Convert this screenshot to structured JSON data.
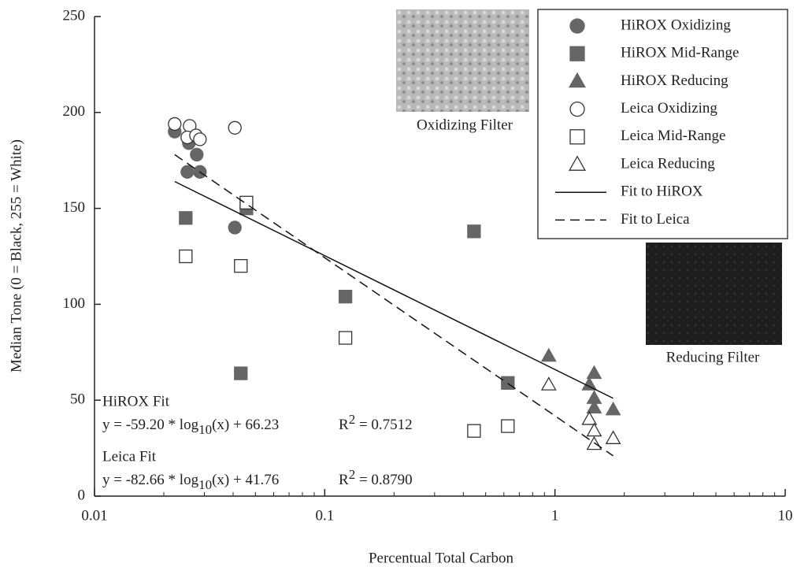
{
  "chart_data": {
    "type": "scatter",
    "x_label": "Percentual Total Carbon",
    "y_label": "Median Tone (0 = Black, 255 = White)",
    "xscale": "log",
    "xlim": [
      0.01,
      10
    ],
    "xticks": [
      0.01,
      0.1,
      1,
      10
    ],
    "ylim": [
      0,
      250
    ],
    "yticks": [
      0,
      50,
      100,
      150,
      200,
      250
    ],
    "grid": false,
    "legend": "upper right",
    "series": [
      {
        "name": "HiROX Oxidizing",
        "color": "#666666",
        "marker": "circle",
        "filled": true,
        "x": [
          0.0223,
          0.0257,
          0.0278,
          0.0253,
          0.0287,
          0.0407
        ],
        "values": [
          190,
          184,
          178,
          169,
          169,
          140
        ]
      },
      {
        "name": "HiROX Mid-Range",
        "color": "#666666",
        "marker": "square",
        "filled": true,
        "x": [
          0.0249,
          0.0457,
          0.0432,
          0.123,
          0.445,
          0.624
        ],
        "values": [
          145,
          150,
          64,
          104,
          138,
          59
        ]
      },
      {
        "name": "HiROX Reducing",
        "color": "#666666",
        "marker": "triangle",
        "filled": true,
        "x": [
          0.94,
          1.48,
          1.41,
          1.48,
          1.48,
          1.79
        ],
        "values": [
          73,
          64,
          58,
          51,
          46,
          45
        ]
      },
      {
        "name": "Leica Oxidizing",
        "color": "#333333",
        "marker": "circle",
        "filled": false,
        "x": [
          0.0223,
          0.0259,
          0.0253,
          0.0276,
          0.0287,
          0.0407
        ],
        "values": [
          194,
          193,
          187,
          188,
          186,
          192
        ]
      },
      {
        "name": "Leica Mid-Range",
        "color": "#333333",
        "marker": "square",
        "filled": false,
        "x": [
          0.0249,
          0.0457,
          0.0432,
          0.123,
          0.445,
          0.624
        ],
        "values": [
          125,
          153,
          120,
          82.5,
          34,
          36.5
        ]
      },
      {
        "name": "Leica Reducing",
        "color": "#333333",
        "marker": "triangle",
        "filled": false,
        "x": [
          0.94,
          1.41,
          1.48,
          1.48,
          1.79
        ],
        "values": [
          58,
          40,
          34,
          27,
          30
        ]
      },
      {
        "name": "Fit to HiROX",
        "color": "#111111",
        "marker": "line",
        "line_style": "solid",
        "x": [
          0.0223,
          1.79
        ],
        "values": [
          164,
          51
        ]
      },
      {
        "name": "Fit to Leica",
        "color": "#111111",
        "marker": "line",
        "line_style": "dashed",
        "x": [
          0.0223,
          1.79
        ],
        "values": [
          178,
          21
        ]
      }
    ],
    "annotations": [
      {
        "title": "HiROX Fit",
        "equation": {
          "text": "y = -59.20 * log",
          "sub": "10",
          "tail": "(x) + 66.23"
        },
        "r2": {
          "text": "R",
          "sup": "2",
          "tail": " = 0.7512"
        }
      },
      {
        "title": "Leica Fit",
        "equation": {
          "text": "y = -82.66 * log",
          "sub": "10",
          "tail": "(x) + 41.76"
        },
        "r2": {
          "text": "R",
          "sup": "2",
          "tail": " = 0.8790"
        }
      }
    ],
    "images": [
      {
        "label": "Oxidizing Filter",
        "tone": "light"
      },
      {
        "label": "Reducing Filter",
        "tone": "dark"
      }
    ]
  }
}
